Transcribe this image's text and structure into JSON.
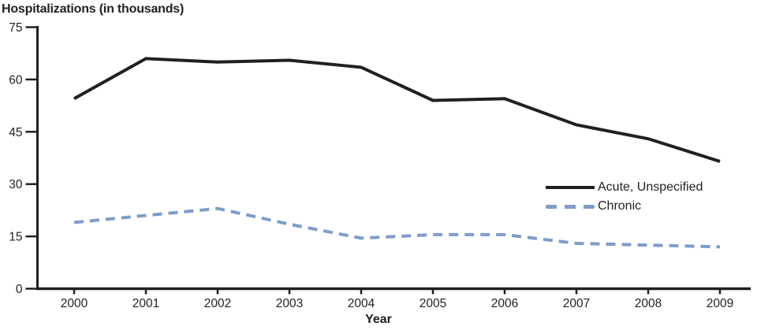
{
  "chart_data": {
    "type": "line",
    "title": "Hospitalizations (in thousands)",
    "xlabel": "Year",
    "ylabel": "Hospitalizations (in thousands)",
    "categories": [
      "2000",
      "2001",
      "2002",
      "2003",
      "2004",
      "2005",
      "2006",
      "2007",
      "2008",
      "2009"
    ],
    "ylim": [
      0,
      75
    ],
    "yticks": [
      0,
      15,
      30,
      45,
      60,
      75
    ],
    "grid": false,
    "legend_position": "inside-right",
    "axis_color": "#231f20",
    "series": [
      {
        "name": "Acute, Unspecified",
        "style": "solid",
        "color": "#231f20",
        "values": [
          54.5,
          66,
          65,
          65.5,
          63.5,
          54,
          54.5,
          47,
          43,
          36.5
        ]
      },
      {
        "name": "Chronic",
        "style": "dashed",
        "color": "#7d9dca",
        "values": [
          19,
          21,
          23,
          18.5,
          14.5,
          15.5,
          15.5,
          13,
          12.5,
          12
        ]
      }
    ]
  }
}
